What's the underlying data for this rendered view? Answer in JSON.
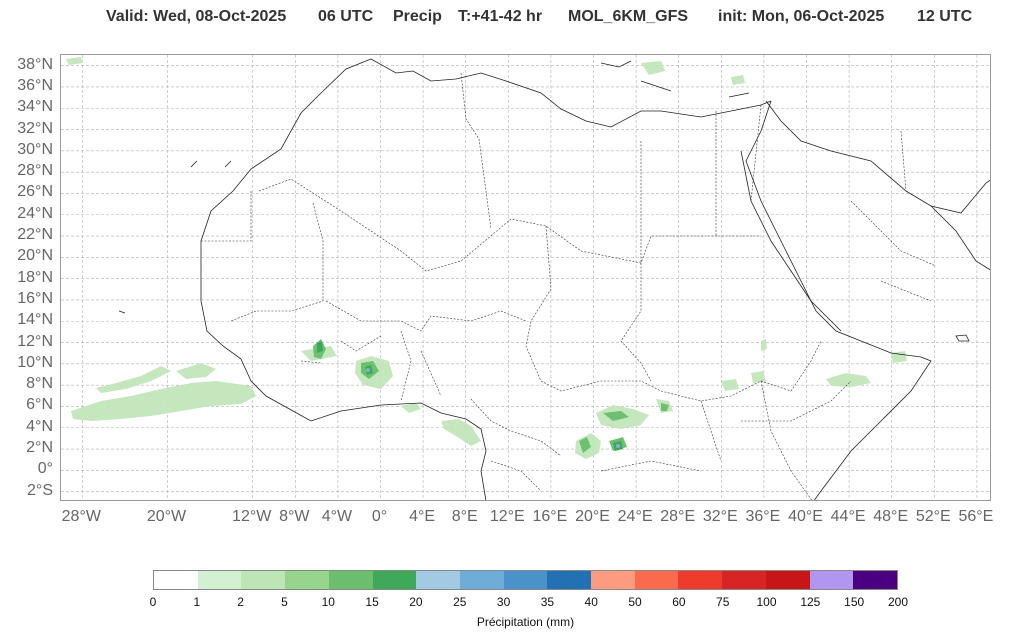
{
  "header": {
    "valid": "Valid: Wed, 08-Oct-2025",
    "hour": "06 UTC",
    "field": "Precip",
    "period": "T:+41-42 hr",
    "model": "MOL_6KM_GFS",
    "init": "init: Mon, 06-Oct-2025",
    "init_hour": "12 UTC"
  },
  "map": {
    "lat_labels": [
      "38°N",
      "36°N",
      "34°N",
      "32°N",
      "30°N",
      "28°N",
      "26°N",
      "24°N",
      "22°N",
      "20°N",
      "18°N",
      "16°N",
      "14°N",
      "12°N",
      "10°N",
      "8°N",
      "6°N",
      "4°N",
      "2°N",
      "0°",
      "2°S"
    ],
    "lon_labels": [
      "28°W",
      "20°W",
      "12°W",
      "8°W",
      "4°W",
      "0°",
      "4°E",
      "8°E",
      "12°E",
      "16°E",
      "20°E",
      "24°E",
      "28°E",
      "32°E",
      "36°E",
      "40°E",
      "44°E",
      "48°E",
      "52°E",
      "56°E"
    ],
    "colors": {
      "coast": "#222222",
      "border": "#333333",
      "grid": "#b0b0b0",
      "precip_light": "#c2e6bb",
      "precip_mid": "#6cc070",
      "precip_dark": "#3ea85a",
      "precip_blue": "#7fb3d8"
    }
  },
  "colorbar": {
    "colors": [
      "#ffffff",
      "#d4f0d2",
      "#bde5b6",
      "#97d58d",
      "#6abe6e",
      "#3ea95b",
      "#a2cbe3",
      "#6eadd8",
      "#4a92c7",
      "#2271b5",
      "#fc9b80",
      "#fa6a4c",
      "#ef3b2c",
      "#d92425",
      "#c81517",
      "#b196ef",
      "#4b0083"
    ],
    "ticks": [
      "0",
      "1",
      "2",
      "5",
      "10",
      "15",
      "20",
      "25",
      "30",
      "35",
      "40",
      "50",
      "60",
      "75",
      "100",
      "125",
      "150",
      "200"
    ],
    "label": "Précipitation (mm)"
  }
}
